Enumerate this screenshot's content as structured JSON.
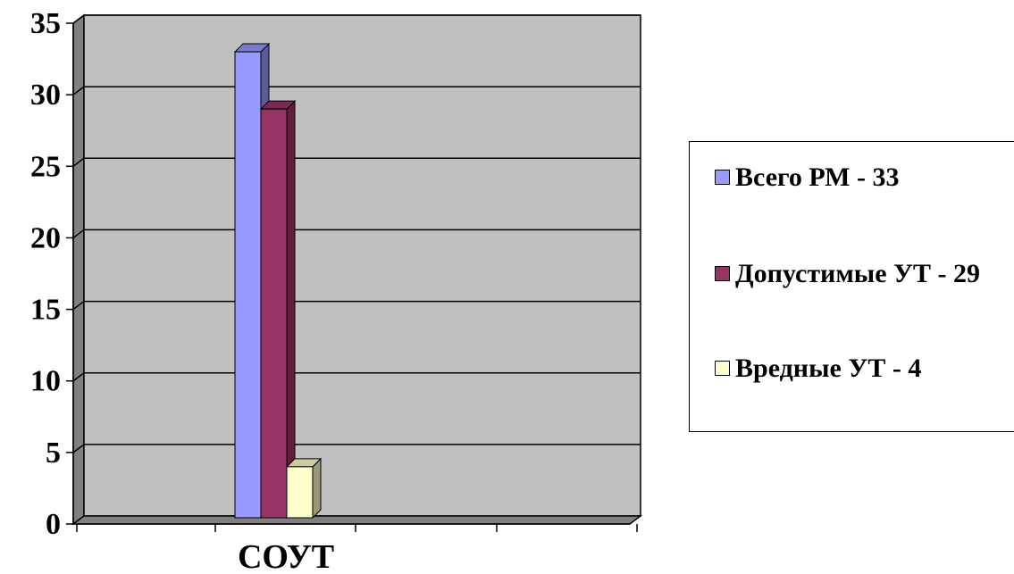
{
  "chart_data": {
    "type": "bar",
    "style": "3d-clustered",
    "categories": [
      "СОУТ"
    ],
    "series": [
      {
        "name": "Всего РМ - 33",
        "values": [
          33
        ],
        "color": "#9999ff"
      },
      {
        "name": "Допустимые УТ - 29",
        "values": [
          29
        ],
        "color": "#993366"
      },
      {
        "name": "Вредные УТ - 4",
        "values": [
          4
        ],
        "color": "#ffffcc"
      }
    ],
    "ylim": [
      0,
      35
    ],
    "yticks": [
      "0",
      "5",
      "10",
      "15",
      "20",
      "25",
      "30",
      "35"
    ],
    "grid": true,
    "plot_background": "#c0c0c0",
    "legend_position": "right"
  }
}
